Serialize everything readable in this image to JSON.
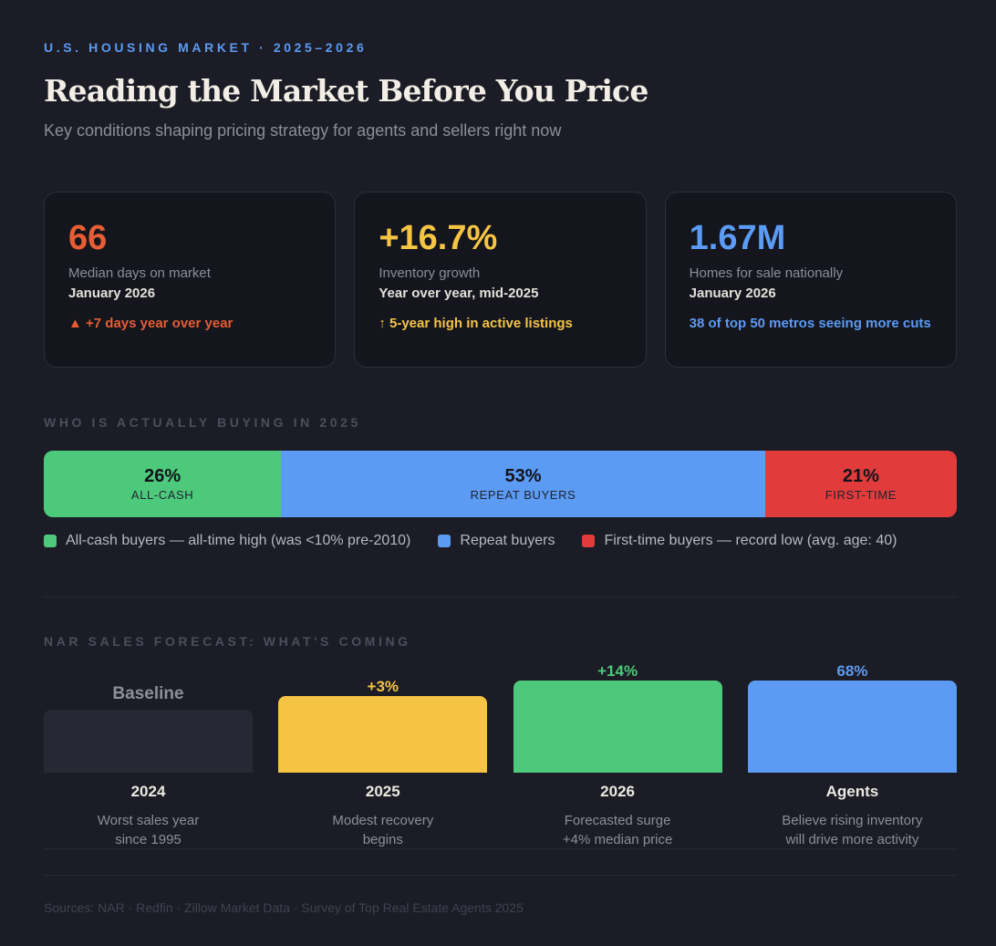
{
  "header": {
    "eyebrow": "U.S. HOUSING MARKET · 2025–2026",
    "title": "Reading the Market Before You Price",
    "subtitle": "Key conditions shaping pricing strategy for agents and sellers right now"
  },
  "cards": [
    {
      "value": "66",
      "label": "Median days on market",
      "sub": "January 2026",
      "note": "▲ +7 days year over year",
      "color": "#e85d33"
    },
    {
      "value": "+16.7%",
      "label": "Inventory growth",
      "sub": "Year over year, mid-2025",
      "note": "↑ 5-year high in active listings",
      "color": "#f5c443"
    },
    {
      "value": "1.67M",
      "label": "Homes for sale nationally",
      "sub": "January 2026",
      "note": "38 of top 50 metros seeing more cuts",
      "color": "#5b9bf3"
    }
  ],
  "buyers_section": {
    "label": "WHO IS ACTUALLY BUYING IN 2025"
  },
  "forecast_section": {
    "label": "NAR SALES FORECAST: WHAT'S COMING"
  },
  "sources": "Sources: NAR · Redfin · Zillow Market Data · Survey of Top Real Estate Agents 2025",
  "chart_data": [
    {
      "type": "bar",
      "orientation": "horizontal-stacked-100",
      "title": "WHO IS ACTUALLY BUYING IN 2025",
      "segments": [
        {
          "label": "ALL-CASH",
          "value_text": "26%",
          "value": 26,
          "color": "#4dc97c",
          "legend": "All-cash buyers — all-time high (was <10% pre-2010)"
        },
        {
          "label": "REPEAT BUYERS",
          "value_text": "53%",
          "value": 53,
          "color": "#5b9bf3",
          "legend": "Repeat buyers"
        },
        {
          "label": "FIRST-TIME",
          "value_text": "21%",
          "value": 21,
          "color": "#e13b3b",
          "legend": "First-time buyers — record low (avg. age: 40)"
        }
      ]
    },
    {
      "type": "bar",
      "title": "NAR SALES FORECAST: WHAT'S COMING",
      "bars": [
        {
          "category": "2024",
          "value_text": "Baseline",
          "level": 0.45,
          "color": "#262834",
          "label_color": "#8c8e99",
          "desc_line1": "Worst sales year",
          "desc_line2": "since 1995"
        },
        {
          "category": "2025",
          "value_text": "+3%",
          "level": 0.55,
          "color": "#f5c443",
          "label_color": "#f5c443",
          "desc_line1": "Modest recovery",
          "desc_line2": "begins"
        },
        {
          "category": "2026",
          "value_text": "+14%",
          "level": 0.66,
          "color": "#4dc97c",
          "label_color": "#4dc97c",
          "desc_line1": "Forecasted surge",
          "desc_line2": "+4% median price"
        },
        {
          "category": "Agents",
          "value_text": "68%",
          "level": 0.66,
          "color": "#5b9bf3",
          "label_color": "#5b9bf3",
          "desc_line1": "Believe rising inventory",
          "desc_line2": "will drive more activity"
        }
      ]
    }
  ]
}
